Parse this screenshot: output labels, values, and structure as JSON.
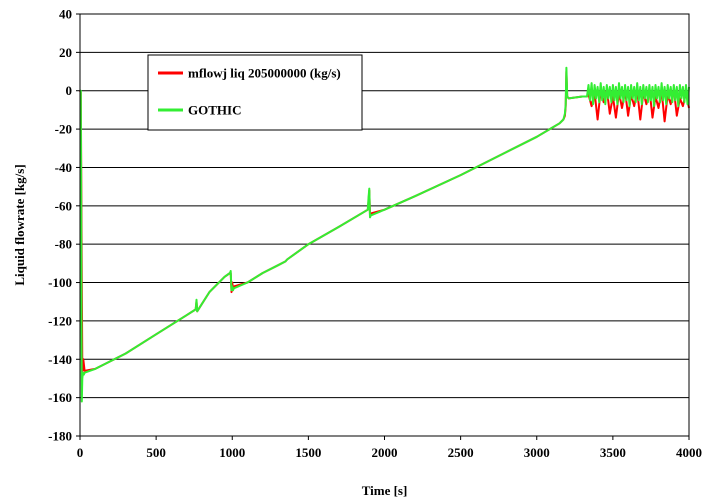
{
  "chart_data": {
    "type": "line",
    "title": "",
    "xlabel": "Time [s]",
    "ylabel": "Liquid flowrate [kg/s]",
    "xlim": [
      0,
      4000
    ],
    "ylim": [
      -180,
      40
    ],
    "xticks": [
      0,
      500,
      1000,
      1500,
      2000,
      2500,
      3000,
      3500,
      4000
    ],
    "yticks": [
      40,
      20,
      0,
      -20,
      -40,
      -60,
      -80,
      -100,
      -120,
      -140,
      -160,
      -180
    ],
    "xtick_labels": [
      "0",
      "500",
      "1000",
      "1500",
      "2000",
      "2500",
      "3000",
      "3500",
      "4000"
    ],
    "ytick_labels": [
      "40",
      "20",
      "0",
      "-20",
      "-40",
      "-60",
      "-80",
      "-100",
      "-120",
      "-140",
      "-160",
      "-180"
    ],
    "grid": "horizontal",
    "legend_position": "upper-left",
    "series": [
      {
        "name": "mflowj liq 205000000 (kg/s)",
        "color": "#ff0000",
        "x": [
          0,
          5,
          8,
          12,
          15,
          18,
          22,
          30,
          100,
          300,
          500,
          700,
          760,
          765,
          770,
          850,
          950,
          985,
          990,
          995,
          1000,
          1005,
          1010,
          1100,
          1200,
          1300,
          1350,
          1360,
          1500,
          1700,
          1890,
          1895,
          1900,
          1905,
          1910,
          2000,
          2200,
          2500,
          2800,
          3000,
          3150,
          3175,
          3185,
          3190,
          3195,
          3200,
          3210,
          3300,
          3330,
          3340,
          3360,
          3380,
          3400,
          3420,
          3440,
          3460,
          3480,
          3500,
          3520,
          3540,
          3560,
          3580,
          3600,
          3620,
          3640,
          3660,
          3680,
          3700,
          3720,
          3740,
          3760,
          3780,
          3800,
          3820,
          3840,
          3860,
          3880,
          3900,
          3920,
          3940,
          3960,
          3980,
          4000
        ],
        "y": [
          0,
          -1,
          -40,
          -100,
          -145,
          -146,
          -140,
          -146,
          -145,
          -137,
          -127,
          -117,
          -114,
          -110,
          -115,
          -105,
          -97,
          -95,
          -95,
          -105,
          -100,
          -104,
          -102,
          -100,
          -95,
          -91,
          -89,
          -88,
          -80,
          -71,
          -62,
          -58,
          -52,
          -65,
          -64,
          -62,
          -55,
          -44,
          -32,
          -24,
          -17,
          -15,
          -13,
          -8,
          10,
          -3,
          -4,
          -3,
          -3,
          -2,
          -8,
          -1,
          -15,
          0,
          -6,
          1,
          -12,
          -3,
          -14,
          -1,
          -9,
          0,
          -13,
          -2,
          -8,
          0,
          -15,
          -1,
          -7,
          1,
          -14,
          -3,
          -9,
          0,
          -16,
          -2,
          -7,
          1,
          -13,
          -4,
          -8,
          -1,
          -9
        ]
      },
      {
        "name": "GOTHIC",
        "color": "#33ee33",
        "x": [
          0,
          5,
          8,
          10,
          12,
          15,
          20,
          25,
          30,
          100,
          300,
          500,
          700,
          760,
          765,
          770,
          850,
          950,
          985,
          990,
          995,
          1000,
          1005,
          1010,
          1100,
          1200,
          1300,
          1350,
          1360,
          1500,
          1700,
          1890,
          1895,
          1900,
          1905,
          1910,
          2000,
          2200,
          2500,
          2800,
          3000,
          3150,
          3175,
          3185,
          3190,
          3195,
          3200,
          3210,
          3300,
          3330,
          3340,
          3350,
          3360,
          3370,
          3380,
          3390,
          3400,
          3410,
          3420,
          3430,
          3440,
          3450,
          3460,
          3470,
          3480,
          3490,
          3500,
          3510,
          3520,
          3530,
          3540,
          3550,
          3560,
          3570,
          3580,
          3590,
          3600,
          3610,
          3620,
          3630,
          3640,
          3650,
          3660,
          3670,
          3680,
          3690,
          3700,
          3710,
          3720,
          3730,
          3740,
          3750,
          3760,
          3770,
          3780,
          3790,
          3800,
          3810,
          3820,
          3830,
          3840,
          3850,
          3860,
          3870,
          3880,
          3890,
          3900,
          3910,
          3920,
          3930,
          3940,
          3950,
          3960,
          3970,
          3980,
          3990,
          4000
        ],
        "y": [
          0,
          0,
          -60,
          -120,
          -162,
          -150,
          -147,
          -148,
          -147,
          -145,
          -137,
          -127,
          -117,
          -114,
          -109,
          -115,
          -105,
          -97,
          -95,
          -94,
          -104,
          -102,
          -104,
          -103,
          -100,
          -95,
          -91,
          -89,
          -88,
          -80,
          -71,
          -62,
          -56,
          -51,
          -66,
          -65,
          -62,
          -55,
          -44,
          -32,
          -24,
          -17,
          -15,
          -12,
          -7,
          12,
          -3,
          -4,
          -3,
          -3,
          3,
          -5,
          4,
          -7,
          3,
          -4,
          2,
          -6,
          4,
          -5,
          2,
          -7,
          3,
          -4,
          2,
          -6,
          3,
          -5,
          2,
          -7,
          4,
          -4,
          2,
          -6,
          3,
          -5,
          2,
          -8,
          3,
          -4,
          2,
          -6,
          4,
          -5,
          2,
          -7,
          3,
          -4,
          2,
          -6,
          3,
          -5,
          2,
          -8,
          3,
          -4,
          2,
          -6,
          4,
          -5,
          2,
          -7,
          3,
          -4,
          2,
          -6,
          3,
          -5,
          2,
          -8,
          3,
          -4,
          2,
          -6,
          3,
          -7,
          2
        ]
      }
    ]
  }
}
